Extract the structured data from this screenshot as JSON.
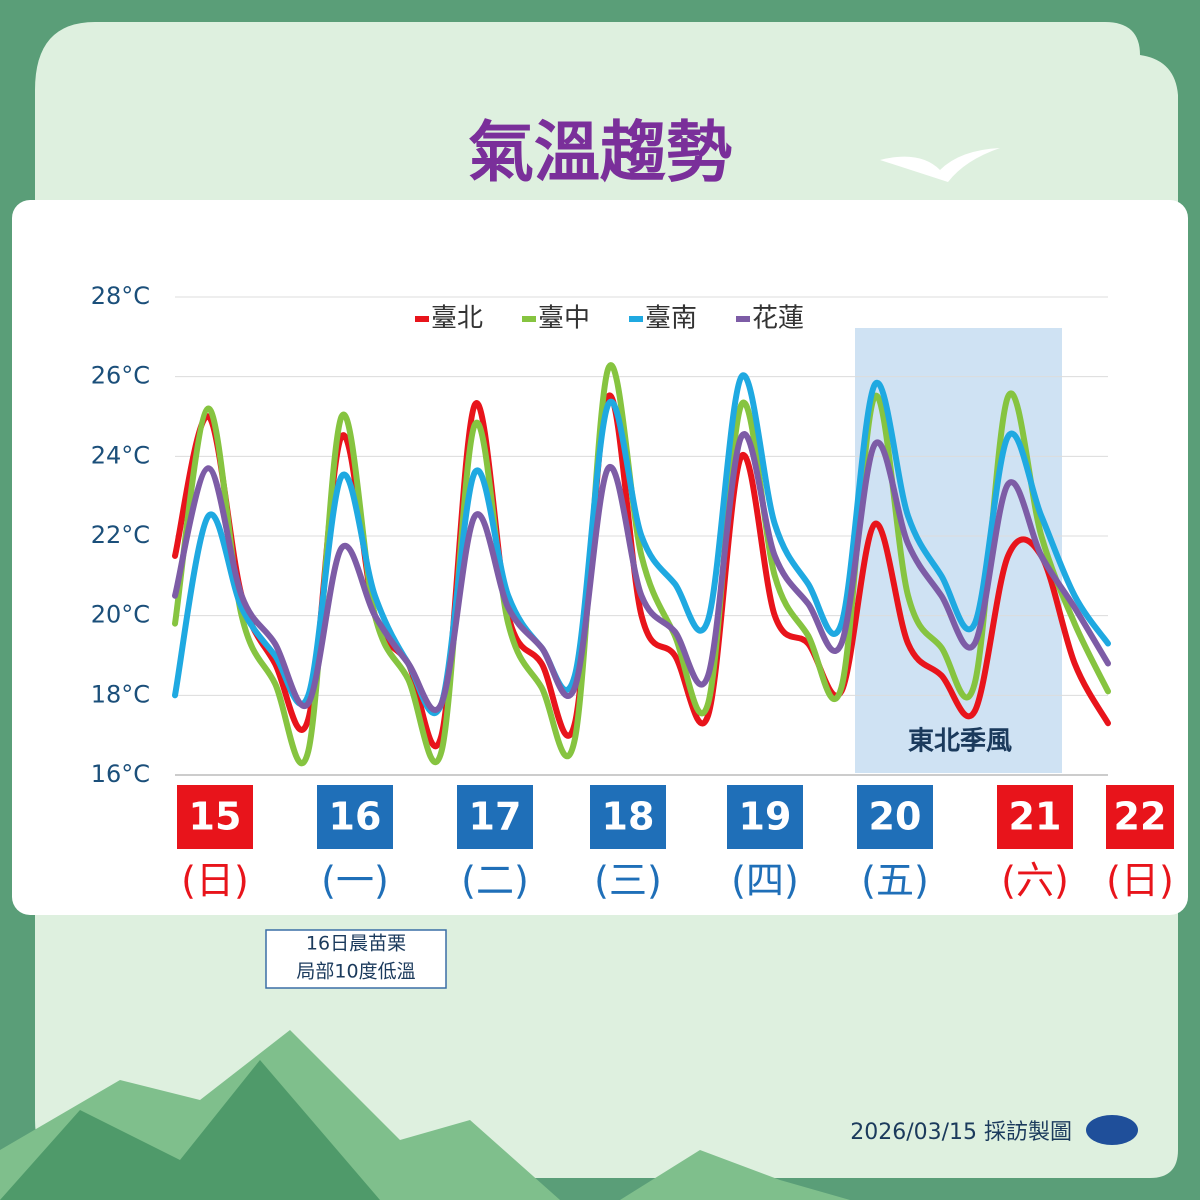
{
  "chart_data": {
    "type": "line",
    "title": "氣溫趨勢",
    "categories": [
      null,
      null,
      null,
      null,
      null,
      null,
      null,
      null,
      null,
      null,
      null,
      null,
      null,
      null,
      null,
      null,
      null,
      null,
      null,
      null,
      null,
      null,
      null,
      null,
      null,
      null,
      null,
      null,
      null
    ],
    "series": [
      {
        "name": "臺北",
        "color": "#e8141b",
        "values": [
          21.5,
          25.0,
          20.5,
          18.8,
          17.4,
          24.5,
          20.0,
          18.8,
          17.0,
          25.3,
          20.0,
          18.8,
          17.3,
          25.5,
          20.0,
          19.0,
          17.5,
          24.0,
          20.0,
          19.3,
          18.1,
          22.3,
          19.3,
          18.5,
          17.6,
          21.5,
          21.5,
          18.8,
          17.3
        ]
      },
      {
        "name": "臺中",
        "color": "#86c440",
        "values": [
          19.8,
          25.2,
          20.0,
          18.3,
          16.6,
          25.0,
          20.0,
          18.4,
          16.6,
          24.8,
          19.8,
          18.2,
          16.9,
          26.2,
          21.5,
          19.5,
          17.8,
          25.3,
          21.0,
          19.5,
          18.2,
          25.5,
          20.5,
          19.2,
          18.3,
          25.5,
          22.0,
          19.8,
          18.1
        ]
      },
      {
        "name": "臺南",
        "color": "#1fa9e1",
        "values": [
          18.0,
          22.5,
          20.2,
          19.0,
          18.0,
          23.5,
          20.5,
          18.8,
          17.8,
          23.6,
          20.5,
          19.2,
          18.5,
          25.3,
          22.0,
          20.8,
          19.9,
          26.0,
          22.3,
          20.8,
          19.8,
          25.8,
          22.5,
          21.0,
          19.8,
          24.5,
          22.5,
          20.5,
          19.3
        ]
      },
      {
        "name": "花蓮",
        "color": "#7d5ca6",
        "values": [
          20.5,
          23.7,
          20.5,
          19.3,
          17.8,
          21.7,
          20.0,
          18.8,
          17.8,
          22.5,
          20.2,
          19.2,
          18.2,
          23.7,
          20.5,
          19.6,
          18.5,
          24.5,
          21.5,
          20.3,
          19.3,
          24.3,
          21.8,
          20.5,
          19.3,
          23.3,
          21.5,
          20.2,
          18.8
        ]
      }
    ],
    "ylim": [
      16,
      28
    ],
    "yticks": [
      {
        "value": 16,
        "label": "16°C"
      },
      {
        "value": 18,
        "label": "18°C"
      },
      {
        "value": 20,
        "label": "20°C"
      },
      {
        "value": 22,
        "label": "22°C"
      },
      {
        "value": 24,
        "label": "24°C"
      },
      {
        "value": 26,
        "label": "26°C"
      },
      {
        "value": 28,
        "label": "28°C"
      }
    ],
    "grid": true,
    "legend": "top",
    "annotation": "東北季風",
    "days": [
      {
        "date": "15",
        "weekday": "(日)",
        "color": "#e8141b"
      },
      {
        "date": "16",
        "weekday": "(一)",
        "color": "#1f6fb8"
      },
      {
        "date": "17",
        "weekday": "(二)",
        "color": "#1f6fb8"
      },
      {
        "date": "18",
        "weekday": "(三)",
        "color": "#1f6fb8"
      },
      {
        "date": "19",
        "weekday": "(四)",
        "color": "#1f6fb8"
      },
      {
        "date": "20",
        "weekday": "(五)",
        "color": "#1f6fb8"
      },
      {
        "date": "21",
        "weekday": "(六)",
        "color": "#e8141b"
      },
      {
        "date": "22",
        "weekday": "(日)",
        "color": "#e8141b"
      }
    ],
    "note": [
      "16日晨苗栗",
      "局部10度低溫"
    ],
    "footer": "2026/03/15 採訪製圖"
  }
}
